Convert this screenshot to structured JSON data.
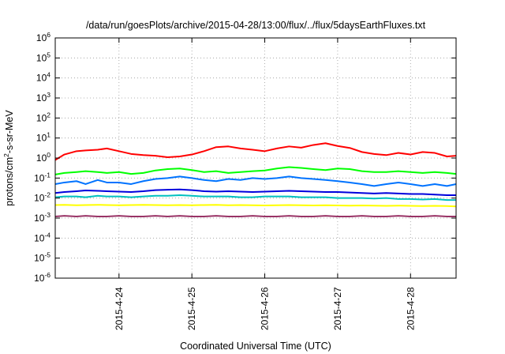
{
  "chart_data": {
    "type": "line",
    "title": "/data/run/goesPlots/archive/2015-04-28/13:00/flux/../flux/5daysEarthFluxes.txt",
    "xlabel": "Coordinated Universal Time (UTC)",
    "ylabel": {
      "base": "protons/cm",
      "sup": "2",
      "rest": "-s-sr-MeV"
    },
    "yscale": "log",
    "ylim": [
      1e-06,
      1000000.0
    ],
    "xlim": [
      "2015-04-23 03:00",
      "2015-04-28 15:00"
    ],
    "grid": true,
    "y_ticks": [
      {
        "value": 1e-06,
        "base": "10",
        "exp": "-6"
      },
      {
        "value": 1e-05,
        "base": "10",
        "exp": "-5"
      },
      {
        "value": 0.0001,
        "base": "10",
        "exp": "-4"
      },
      {
        "value": 0.001,
        "base": "10",
        "exp": "-3"
      },
      {
        "value": 0.01,
        "base": "10",
        "exp": "-2"
      },
      {
        "value": 0.1,
        "base": "10",
        "exp": "-1"
      },
      {
        "value": 1,
        "base": "10",
        "exp": "0"
      },
      {
        "value": 10,
        "base": "10",
        "exp": "1"
      },
      {
        "value": 100,
        "base": "10",
        "exp": "2"
      },
      {
        "value": 1000,
        "base": "10",
        "exp": "3"
      },
      {
        "value": 10000,
        "base": "10",
        "exp": "4"
      },
      {
        "value": 100000,
        "base": "10",
        "exp": "5"
      },
      {
        "value": 1000000,
        "base": "10",
        "exp": "6"
      }
    ],
    "x_ticks": [
      {
        "value": "2015-04-24 00:00",
        "label": "2015-4-24"
      },
      {
        "value": "2015-04-25 00:00",
        "label": "2015-4-25"
      },
      {
        "value": "2015-04-26 00:00",
        "label": "2015-4-26"
      },
      {
        "value": "2015-04-27 00:00",
        "label": "2015-4-27"
      },
      {
        "value": "2015-04-28 00:00",
        "label": "2015-4-28"
      }
    ],
    "series": [
      {
        "color": "#ff0000",
        "x": [
          "2015-04-23 03:00",
          "2015-04-23 06:00",
          "2015-04-23 10:00",
          "2015-04-23 13:00",
          "2015-04-23 17:00",
          "2015-04-23 20:00",
          "2015-04-24 00:00",
          "2015-04-24 04:00",
          "2015-04-24 08:00",
          "2015-04-24 12:00",
          "2015-04-24 16:00",
          "2015-04-24 20:00",
          "2015-04-25 00:00",
          "2015-04-25 04:00",
          "2015-04-25 08:00",
          "2015-04-25 12:00",
          "2015-04-25 16:00",
          "2015-04-25 20:00",
          "2015-04-26 00:00",
          "2015-04-26 04:00",
          "2015-04-26 08:00",
          "2015-04-26 12:00",
          "2015-04-26 16:00",
          "2015-04-26 20:00",
          "2015-04-27 00:00",
          "2015-04-27 04:00",
          "2015-04-27 08:00",
          "2015-04-27 12:00",
          "2015-04-27 16:00",
          "2015-04-27 20:00",
          "2015-04-28 00:00",
          "2015-04-28 04:00",
          "2015-04-28 08:00",
          "2015-04-28 12:00",
          "2015-04-28 15:00"
        ],
        "values": [
          0.8,
          1.5,
          2.2,
          2.4,
          2.6,
          3.0,
          2.2,
          1.6,
          1.4,
          1.3,
          1.1,
          1.2,
          1.5,
          2.2,
          3.5,
          3.8,
          3.0,
          2.6,
          2.2,
          3.0,
          3.8,
          3.3,
          4.5,
          5.5,
          4.0,
          3.2,
          2.0,
          1.6,
          1.4,
          1.8,
          1.5,
          2.0,
          1.8,
          1.2,
          1.3
        ]
      },
      {
        "color": "#00ff00",
        "x": [
          "2015-04-23 03:00",
          "2015-04-23 06:00",
          "2015-04-23 10:00",
          "2015-04-23 13:00",
          "2015-04-23 17:00",
          "2015-04-23 20:00",
          "2015-04-24 00:00",
          "2015-04-24 04:00",
          "2015-04-24 08:00",
          "2015-04-24 12:00",
          "2015-04-24 16:00",
          "2015-04-24 20:00",
          "2015-04-25 00:00",
          "2015-04-25 04:00",
          "2015-04-25 08:00",
          "2015-04-25 12:00",
          "2015-04-25 16:00",
          "2015-04-25 20:00",
          "2015-04-26 00:00",
          "2015-04-26 04:00",
          "2015-04-26 08:00",
          "2015-04-26 12:00",
          "2015-04-26 16:00",
          "2015-04-26 20:00",
          "2015-04-27 00:00",
          "2015-04-27 04:00",
          "2015-04-27 08:00",
          "2015-04-27 12:00",
          "2015-04-27 16:00",
          "2015-04-27 20:00",
          "2015-04-28 00:00",
          "2015-04-28 04:00",
          "2015-04-28 08:00",
          "2015-04-28 12:00",
          "2015-04-28 15:00"
        ],
        "values": [
          0.15,
          0.18,
          0.2,
          0.22,
          0.2,
          0.18,
          0.2,
          0.16,
          0.18,
          0.24,
          0.28,
          0.3,
          0.25,
          0.2,
          0.22,
          0.18,
          0.2,
          0.22,
          0.24,
          0.3,
          0.35,
          0.32,
          0.28,
          0.25,
          0.3,
          0.28,
          0.22,
          0.2,
          0.2,
          0.22,
          0.2,
          0.18,
          0.2,
          0.18,
          0.16
        ]
      },
      {
        "color": "#0073ff",
        "x": [
          "2015-04-23 03:00",
          "2015-04-23 06:00",
          "2015-04-23 10:00",
          "2015-04-23 13:00",
          "2015-04-23 17:00",
          "2015-04-23 20:00",
          "2015-04-24 00:00",
          "2015-04-24 04:00",
          "2015-04-24 08:00",
          "2015-04-24 12:00",
          "2015-04-24 16:00",
          "2015-04-24 20:00",
          "2015-04-25 00:00",
          "2015-04-25 04:00",
          "2015-04-25 08:00",
          "2015-04-25 12:00",
          "2015-04-25 16:00",
          "2015-04-25 20:00",
          "2015-04-26 00:00",
          "2015-04-26 04:00",
          "2015-04-26 08:00",
          "2015-04-26 12:00",
          "2015-04-26 16:00",
          "2015-04-26 20:00",
          "2015-04-27 00:00",
          "2015-04-27 04:00",
          "2015-04-27 08:00",
          "2015-04-27 12:00",
          "2015-04-27 16:00",
          "2015-04-27 20:00",
          "2015-04-28 00:00",
          "2015-04-28 04:00",
          "2015-04-28 08:00",
          "2015-04-28 12:00",
          "2015-04-28 15:00"
        ],
        "values": [
          0.05,
          0.06,
          0.07,
          0.05,
          0.08,
          0.06,
          0.06,
          0.05,
          0.07,
          0.09,
          0.1,
          0.12,
          0.1,
          0.08,
          0.07,
          0.09,
          0.08,
          0.1,
          0.09,
          0.1,
          0.12,
          0.1,
          0.09,
          0.08,
          0.07,
          0.06,
          0.05,
          0.04,
          0.05,
          0.06,
          0.05,
          0.04,
          0.05,
          0.04,
          0.05
        ]
      },
      {
        "color": "#0000dd",
        "x": [
          "2015-04-23 03:00",
          "2015-04-23 06:00",
          "2015-04-23 10:00",
          "2015-04-23 13:00",
          "2015-04-23 17:00",
          "2015-04-23 20:00",
          "2015-04-24 00:00",
          "2015-04-24 04:00",
          "2015-04-24 08:00",
          "2015-04-24 12:00",
          "2015-04-24 16:00",
          "2015-04-24 20:00",
          "2015-04-25 00:00",
          "2015-04-25 04:00",
          "2015-04-25 08:00",
          "2015-04-25 12:00",
          "2015-04-25 16:00",
          "2015-04-25 20:00",
          "2015-04-26 00:00",
          "2015-04-26 04:00",
          "2015-04-26 08:00",
          "2015-04-26 12:00",
          "2015-04-26 16:00",
          "2015-04-26 20:00",
          "2015-04-27 00:00",
          "2015-04-27 04:00",
          "2015-04-27 08:00",
          "2015-04-27 12:00",
          "2015-04-27 16:00",
          "2015-04-27 20:00",
          "2015-04-28 00:00",
          "2015-04-28 04:00",
          "2015-04-28 08:00",
          "2015-04-28 12:00",
          "2015-04-28 15:00"
        ],
        "values": [
          0.018,
          0.02,
          0.022,
          0.024,
          0.023,
          0.022,
          0.021,
          0.02,
          0.022,
          0.025,
          0.026,
          0.027,
          0.025,
          0.022,
          0.021,
          0.022,
          0.021,
          0.02,
          0.021,
          0.022,
          0.023,
          0.022,
          0.021,
          0.02,
          0.02,
          0.019,
          0.018,
          0.017,
          0.018,
          0.017,
          0.016,
          0.016,
          0.015,
          0.014,
          0.014
        ]
      },
      {
        "color": "#00c0c0",
        "x": [
          "2015-04-23 03:00",
          "2015-04-23 06:00",
          "2015-04-23 10:00",
          "2015-04-23 13:00",
          "2015-04-23 17:00",
          "2015-04-23 20:00",
          "2015-04-24 00:00",
          "2015-04-24 04:00",
          "2015-04-24 08:00",
          "2015-04-24 12:00",
          "2015-04-24 16:00",
          "2015-04-24 20:00",
          "2015-04-25 00:00",
          "2015-04-25 04:00",
          "2015-04-25 08:00",
          "2015-04-25 12:00",
          "2015-04-25 16:00",
          "2015-04-25 20:00",
          "2015-04-26 00:00",
          "2015-04-26 04:00",
          "2015-04-26 08:00",
          "2015-04-26 12:00",
          "2015-04-26 16:00",
          "2015-04-26 20:00",
          "2015-04-27 00:00",
          "2015-04-27 04:00",
          "2015-04-27 08:00",
          "2015-04-27 12:00",
          "2015-04-27 16:00",
          "2015-04-27 20:00",
          "2015-04-28 00:00",
          "2015-04-28 04:00",
          "2015-04-28 08:00",
          "2015-04-28 12:00",
          "2015-04-28 15:00"
        ],
        "values": [
          0.011,
          0.012,
          0.012,
          0.011,
          0.013,
          0.012,
          0.012,
          0.011,
          0.012,
          0.013,
          0.013,
          0.014,
          0.013,
          0.012,
          0.012,
          0.012,
          0.011,
          0.011,
          0.012,
          0.012,
          0.012,
          0.011,
          0.011,
          0.011,
          0.01,
          0.01,
          0.01,
          0.0095,
          0.01,
          0.009,
          0.009,
          0.0085,
          0.009,
          0.008,
          0.008
        ]
      },
      {
        "color": "#ffff00",
        "x": [
          "2015-04-23 03:00",
          "2015-04-23 06:00",
          "2015-04-23 10:00",
          "2015-04-23 13:00",
          "2015-04-23 17:00",
          "2015-04-23 20:00",
          "2015-04-24 00:00",
          "2015-04-24 04:00",
          "2015-04-24 08:00",
          "2015-04-24 12:00",
          "2015-04-24 16:00",
          "2015-04-24 20:00",
          "2015-04-25 00:00",
          "2015-04-25 04:00",
          "2015-04-25 08:00",
          "2015-04-25 12:00",
          "2015-04-25 16:00",
          "2015-04-25 20:00",
          "2015-04-26 00:00",
          "2015-04-26 04:00",
          "2015-04-26 08:00",
          "2015-04-26 12:00",
          "2015-04-26 16:00",
          "2015-04-26 20:00",
          "2015-04-27 00:00",
          "2015-04-27 04:00",
          "2015-04-27 08:00",
          "2015-04-27 12:00",
          "2015-04-27 16:00",
          "2015-04-27 20:00",
          "2015-04-28 00:00",
          "2015-04-28 04:00",
          "2015-04-28 08:00",
          "2015-04-28 12:00",
          "2015-04-28 15:00"
        ],
        "values": [
          0.0045,
          0.0046,
          0.0044,
          0.0045,
          0.0046,
          0.0045,
          0.0044,
          0.0045,
          0.0046,
          0.0045,
          0.0044,
          0.0045,
          0.0044,
          0.0045,
          0.0046,
          0.0044,
          0.0045,
          0.0044,
          0.0043,
          0.0044,
          0.0045,
          0.0044,
          0.0043,
          0.0044,
          0.0043,
          0.0042,
          0.0043,
          0.0042,
          0.0041,
          0.0042,
          0.0041,
          0.004,
          0.0041,
          0.004,
          0.0038
        ]
      },
      {
        "color": "#993366",
        "x": [
          "2015-04-23 03:00",
          "2015-04-23 06:00",
          "2015-04-23 10:00",
          "2015-04-23 13:00",
          "2015-04-23 17:00",
          "2015-04-23 20:00",
          "2015-04-24 00:00",
          "2015-04-24 04:00",
          "2015-04-24 08:00",
          "2015-04-24 12:00",
          "2015-04-24 16:00",
          "2015-04-24 20:00",
          "2015-04-25 00:00",
          "2015-04-25 04:00",
          "2015-04-25 08:00",
          "2015-04-25 12:00",
          "2015-04-25 16:00",
          "2015-04-25 20:00",
          "2015-04-26 00:00",
          "2015-04-26 04:00",
          "2015-04-26 08:00",
          "2015-04-26 12:00",
          "2015-04-26 16:00",
          "2015-04-26 20:00",
          "2015-04-27 00:00",
          "2015-04-27 04:00",
          "2015-04-27 08:00",
          "2015-04-27 12:00",
          "2015-04-27 16:00",
          "2015-04-27 20:00",
          "2015-04-28 00:00",
          "2015-04-28 04:00",
          "2015-04-28 08:00",
          "2015-04-28 12:00",
          "2015-04-28 15:00"
        ],
        "values": [
          0.0012,
          0.0013,
          0.0012,
          0.0013,
          0.0012,
          0.0012,
          0.0013,
          0.0012,
          0.0012,
          0.0013,
          0.0012,
          0.0013,
          0.0012,
          0.0012,
          0.0013,
          0.0012,
          0.0012,
          0.0013,
          0.0012,
          0.0012,
          0.0013,
          0.0012,
          0.0012,
          0.0013,
          0.0012,
          0.0012,
          0.0013,
          0.0012,
          0.0012,
          0.0013,
          0.0012,
          0.0012,
          0.0013,
          0.0012,
          0.0012
        ]
      }
    ]
  }
}
